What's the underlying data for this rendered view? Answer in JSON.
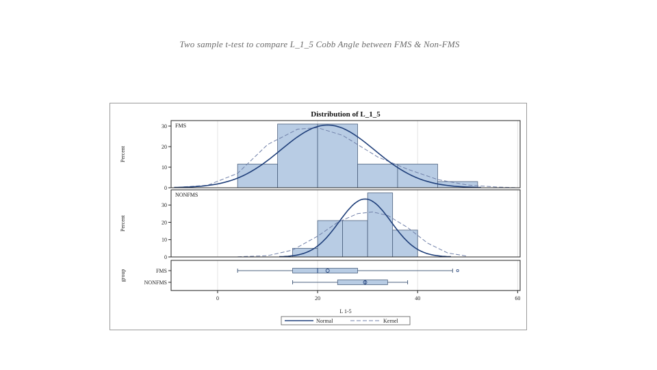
{
  "page": {
    "title": "Two sample t-test to compare L_1_5 Cobb Angle between FMS & Non-FMS"
  },
  "colors": {
    "bar_fill": "#b8cce4",
    "bar_stroke": "#4a5f7d",
    "normal_line": "#1f3f7a",
    "kernel_line": "#6f7fa8",
    "grid": "#e3e3e3"
  },
  "chart_data": {
    "type": "histogram-boxplot",
    "title": "Distribution of L_1_5",
    "xlabel": "L 1-5",
    "xlim": [
      -9.3,
      60.5
    ],
    "x_ticks": [
      0,
      20,
      40,
      60
    ],
    "panels": [
      {
        "label": "FMS",
        "ylabel": "Percent",
        "ylim": [
          0,
          32
        ],
        "y_ticks": [
          0,
          10,
          20,
          30
        ],
        "bins": [
          {
            "x0": 4,
            "x1": 12,
            "value": 11.5
          },
          {
            "x0": 12,
            "x1": 20,
            "value": 31
          },
          {
            "x0": 20,
            "x1": 28,
            "value": 31
          },
          {
            "x0": 28,
            "x1": 36,
            "value": 11.5
          },
          {
            "x0": 36,
            "x1": 44,
            "value": 11.5
          },
          {
            "x0": 44,
            "x1": 52,
            "value": 3
          }
        ],
        "normal": {
          "mean": 22,
          "sd": 9.3,
          "peak": 30.5
        },
        "kernel": [
          [
            -8,
            0.2
          ],
          [
            -2,
            1.2
          ],
          [
            4,
            7
          ],
          [
            10,
            21
          ],
          [
            16,
            28.5
          ],
          [
            20,
            29.2
          ],
          [
            25,
            25.5
          ],
          [
            32,
            15
          ],
          [
            38,
            9
          ],
          [
            44,
            4
          ],
          [
            50,
            1.3
          ],
          [
            56,
            0.3
          ],
          [
            59.5,
            0.1
          ]
        ]
      },
      {
        "label": "NONFMS",
        "ylabel": "Percent",
        "ylim": [
          0,
          38
        ],
        "y_ticks": [
          0,
          10,
          20,
          30
        ],
        "bins": [
          {
            "x0": 15,
            "x1": 20,
            "value": 5
          },
          {
            "x0": 20,
            "x1": 25,
            "value": 21
          },
          {
            "x0": 25,
            "x1": 30,
            "value": 21
          },
          {
            "x0": 30,
            "x1": 35,
            "value": 37
          },
          {
            "x0": 35,
            "x1": 40,
            "value": 15.5
          }
        ],
        "normal": {
          "mean": 29.5,
          "sd": 5.2,
          "peak": 33.5
        },
        "kernel": [
          [
            4,
            0.1
          ],
          [
            10,
            0.7
          ],
          [
            15,
            4
          ],
          [
            20,
            12
          ],
          [
            24,
            20
          ],
          [
            28,
            25
          ],
          [
            31,
            26
          ],
          [
            34,
            24
          ],
          [
            38,
            17
          ],
          [
            42,
            8
          ],
          [
            46,
            2.3
          ],
          [
            50,
            0.4
          ]
        ]
      }
    ],
    "boxplot": {
      "ylabel": "group",
      "groups": [
        {
          "name": "FMS",
          "whisker_low": 4,
          "q1": 15,
          "median": 20,
          "mean": 22,
          "q3": 28,
          "whisker_high": 47,
          "outliers": [
            48
          ]
        },
        {
          "name": "NONFMS",
          "whisker_low": 15,
          "q1": 24,
          "median": 29.5,
          "mean": 29.5,
          "q3": 34,
          "whisker_high": 38,
          "outliers": []
        }
      ]
    },
    "legend": {
      "position": "bottom",
      "entries": [
        {
          "name": "Normal",
          "style": "solid"
        },
        {
          "name": "Kernel",
          "style": "dashed"
        }
      ]
    }
  }
}
